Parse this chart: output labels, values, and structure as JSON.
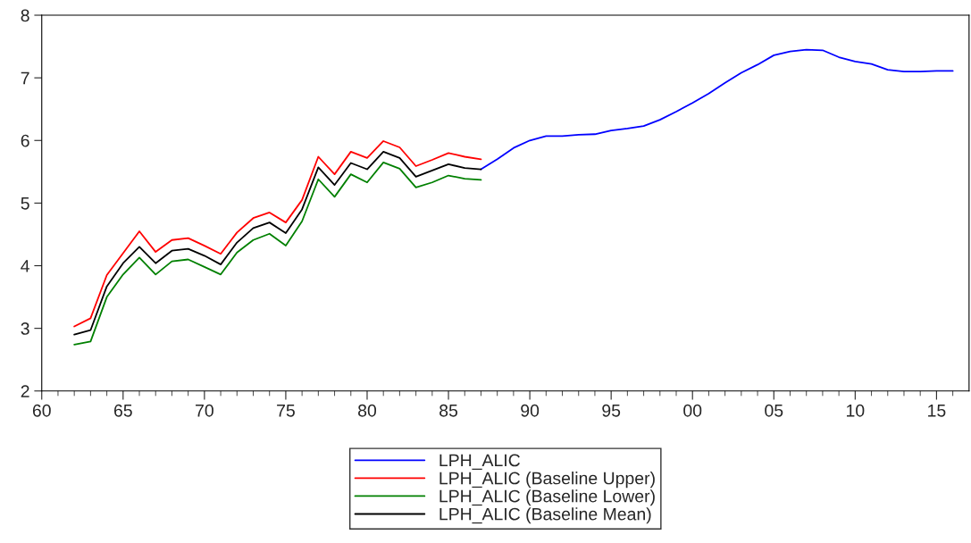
{
  "chart_data": {
    "type": "line",
    "series": [
      {
        "name": "LPH_ALIC",
        "color": "#0000ff",
        "x": [
          1987,
          1988,
          1989,
          1990,
          1991,
          1992,
          1993,
          1994,
          1995,
          1996,
          1997,
          1998,
          1999,
          2000,
          2001,
          2002,
          2003,
          2004,
          2005,
          2006,
          2007,
          2008,
          2009,
          2010,
          2011,
          2012,
          2013,
          2014,
          2015,
          2016
        ],
        "values": [
          5.54,
          5.7,
          5.88,
          6.0,
          6.07,
          6.07,
          6.09,
          6.1,
          6.16,
          6.19,
          6.23,
          6.33,
          6.46,
          6.6,
          6.75,
          6.92,
          7.08,
          7.21,
          7.36,
          7.42,
          7.45,
          7.44,
          7.33,
          7.26,
          7.22,
          7.13,
          7.1,
          7.1,
          7.11,
          7.11
        ]
      },
      {
        "name": "LPH_ALIC (Baseline Upper)",
        "color": "#ff0000",
        "x": [
          1962,
          1963,
          1964,
          1965,
          1966,
          1967,
          1968,
          1969,
          1970,
          1971,
          1972,
          1973,
          1974,
          1975,
          1976,
          1977,
          1978,
          1979,
          1980,
          1981,
          1982,
          1983,
          1984,
          1985,
          1986,
          1987
        ],
        "values": [
          3.03,
          3.16,
          3.85,
          4.2,
          4.55,
          4.22,
          4.41,
          4.44,
          4.32,
          4.19,
          4.53,
          4.76,
          4.85,
          4.69,
          5.05,
          5.74,
          5.46,
          5.82,
          5.72,
          5.99,
          5.89,
          5.59,
          5.69,
          5.8,
          5.74,
          5.7
        ]
      },
      {
        "name": "LPH_ALIC (Baseline Lower)",
        "color": "#008000",
        "x": [
          1962,
          1963,
          1964,
          1965,
          1966,
          1967,
          1968,
          1969,
          1970,
          1971,
          1972,
          1973,
          1974,
          1975,
          1976,
          1977,
          1978,
          1979,
          1980,
          1981,
          1982,
          1983,
          1984,
          1985,
          1986,
          1987
        ],
        "values": [
          2.74,
          2.79,
          3.5,
          3.86,
          4.13,
          3.86,
          4.07,
          4.1,
          3.98,
          3.86,
          4.21,
          4.41,
          4.51,
          4.32,
          4.71,
          5.38,
          5.1,
          5.46,
          5.33,
          5.65,
          5.55,
          5.25,
          5.33,
          5.44,
          5.39,
          5.37
        ]
      },
      {
        "name": "LPH_ALIC (Baseline Mean)",
        "color": "#000000",
        "x": [
          1962,
          1963,
          1964,
          1965,
          1966,
          1967,
          1968,
          1969,
          1970,
          1971,
          1972,
          1973,
          1974,
          1975,
          1976,
          1977,
          1978,
          1979,
          1980,
          1981,
          1982,
          1983,
          1984,
          1985,
          1986,
          1987
        ],
        "values": [
          2.9,
          2.97,
          3.67,
          4.04,
          4.3,
          4.04,
          4.24,
          4.27,
          4.16,
          4.02,
          4.37,
          4.6,
          4.69,
          4.52,
          4.9,
          5.57,
          5.29,
          5.64,
          5.54,
          5.82,
          5.72,
          5.42,
          5.52,
          5.62,
          5.56,
          5.54
        ]
      }
    ],
    "xlim": [
      1960,
      2017
    ],
    "xticks": [
      {
        "value": 1960,
        "label": "60"
      },
      {
        "value": 1961,
        "label": null
      },
      {
        "value": 1962,
        "label": null
      },
      {
        "value": 1963,
        "label": null
      },
      {
        "value": 1964,
        "label": null
      },
      {
        "value": 1965,
        "label": "65"
      },
      {
        "value": 1966,
        "label": null
      },
      {
        "value": 1967,
        "label": null
      },
      {
        "value": 1968,
        "label": null
      },
      {
        "value": 1969,
        "label": null
      },
      {
        "value": 1970,
        "label": "70"
      },
      {
        "value": 1971,
        "label": null
      },
      {
        "value": 1972,
        "label": null
      },
      {
        "value": 1973,
        "label": null
      },
      {
        "value": 1974,
        "label": null
      },
      {
        "value": 1975,
        "label": "75"
      },
      {
        "value": 1976,
        "label": null
      },
      {
        "value": 1977,
        "label": null
      },
      {
        "value": 1978,
        "label": null
      },
      {
        "value": 1979,
        "label": null
      },
      {
        "value": 1980,
        "label": "80"
      },
      {
        "value": 1981,
        "label": null
      },
      {
        "value": 1982,
        "label": null
      },
      {
        "value": 1983,
        "label": null
      },
      {
        "value": 1984,
        "label": null
      },
      {
        "value": 1985,
        "label": "85"
      },
      {
        "value": 1986,
        "label": null
      },
      {
        "value": 1987,
        "label": null
      },
      {
        "value": 1988,
        "label": null
      },
      {
        "value": 1989,
        "label": null
      },
      {
        "value": 1990,
        "label": "90"
      },
      {
        "value": 1991,
        "label": null
      },
      {
        "value": 1992,
        "label": null
      },
      {
        "value": 1993,
        "label": null
      },
      {
        "value": 1994,
        "label": null
      },
      {
        "value": 1995,
        "label": "95"
      },
      {
        "value": 1996,
        "label": null
      },
      {
        "value": 1997,
        "label": null
      },
      {
        "value": 1998,
        "label": null
      },
      {
        "value": 1999,
        "label": null
      },
      {
        "value": 2000,
        "label": "00"
      },
      {
        "value": 2001,
        "label": null
      },
      {
        "value": 2002,
        "label": null
      },
      {
        "value": 2003,
        "label": null
      },
      {
        "value": 2004,
        "label": null
      },
      {
        "value": 2005,
        "label": "05"
      },
      {
        "value": 2006,
        "label": null
      },
      {
        "value": 2007,
        "label": null
      },
      {
        "value": 2008,
        "label": null
      },
      {
        "value": 2009,
        "label": null
      },
      {
        "value": 2010,
        "label": "10"
      },
      {
        "value": 2011,
        "label": null
      },
      {
        "value": 2012,
        "label": null
      },
      {
        "value": 2013,
        "label": null
      },
      {
        "value": 2014,
        "label": null
      },
      {
        "value": 2015,
        "label": "15"
      },
      {
        "value": 2016,
        "label": null
      }
    ],
    "ylim": [
      2,
      8
    ],
    "yticks": [
      2,
      3,
      4,
      5,
      6,
      7,
      8
    ],
    "grid": false,
    "legend": "bottom",
    "marker": "none",
    "line_style": "solid"
  }
}
